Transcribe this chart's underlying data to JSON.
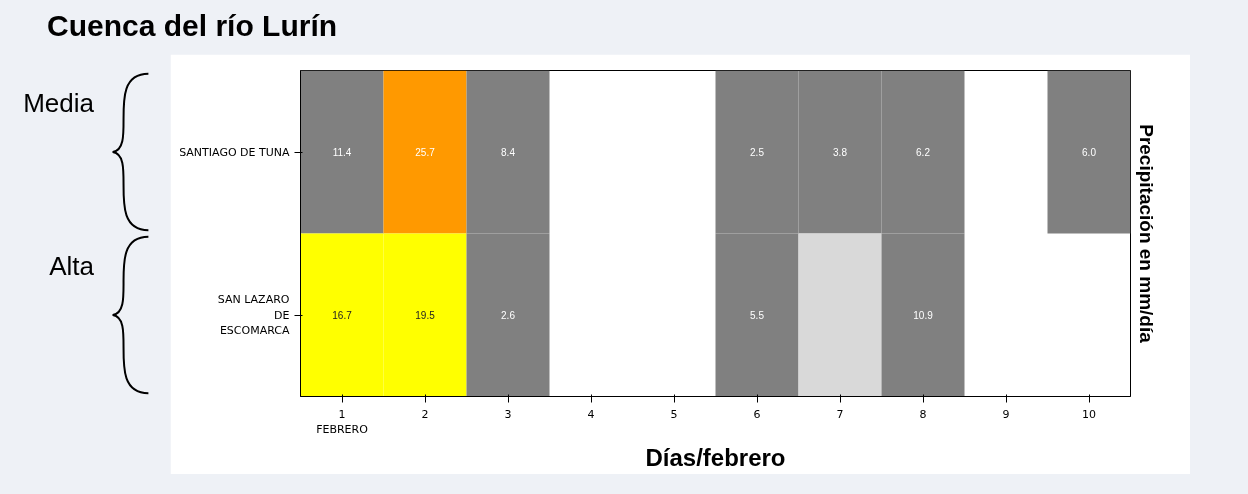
{
  "chart_data": {
    "type": "heatmap",
    "title": "Cuenca del río Lurín",
    "xlabel": "Días/febrero",
    "y2label": "Precipitación en mm/día",
    "categories": [
      "1\nFEBRERO",
      "2",
      "3",
      "4",
      "5",
      "6",
      "7",
      "8",
      "9",
      "10"
    ],
    "y_categories": [
      "SANTIAGO DE TUNA",
      "SAN LAZARO\nDE\nESCOMARCA"
    ],
    "cells": [
      [
        11.4,
        25.7,
        8.4,
        null,
        null,
        2.5,
        3.8,
        6.2,
        null,
        6.0
      ],
      [
        16.7,
        19.5,
        2.6,
        null,
        null,
        5.5,
        null,
        10.9,
        null,
        null
      ]
    ],
    "colors": [
      [
        "#808080",
        "#ff9900",
        "#808080",
        null,
        null,
        "#808080",
        "#808080",
        "#808080",
        null,
        "#808080"
      ],
      [
        "#ffff00",
        "#ffff00",
        "#808080",
        null,
        null,
        "#808080",
        "#d9d9d9",
        "#808080",
        null,
        null
      ]
    ],
    "data_labels": true,
    "cell_labels": [
      [
        "11.4",
        "25.7",
        "8.4",
        null,
        null,
        "2.5",
        "3.8",
        "6.2",
        null,
        "6.0"
      ],
      [
        "16.7",
        "19.5",
        "2.6",
        null,
        null,
        "5.5",
        null,
        "10.9",
        null,
        null
      ]
    ],
    "annotations": [
      "Media",
      "Alta"
    ]
  }
}
